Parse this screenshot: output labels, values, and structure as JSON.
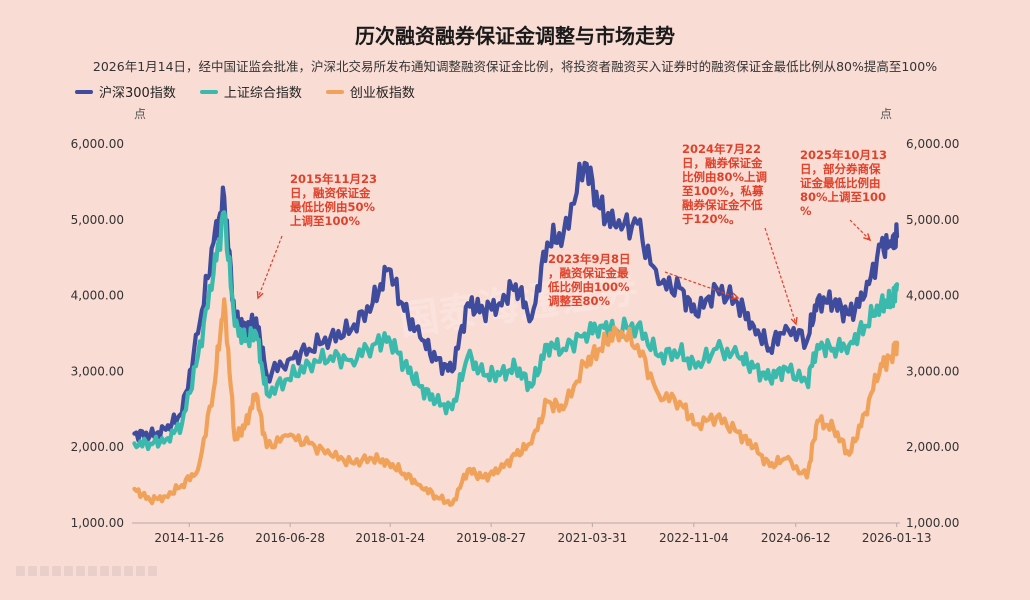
{
  "title": "历次融资融券保证金调整与市场走势",
  "subtitle": "2026年1月14日，经中国证监会批准，沪深北交易所发布通知调整融资保证金比例，将投资者融资买入证券时的融资保证金最低比例从80%提高至100%",
  "watermark": "国泰海通证券",
  "legend": [
    {
      "name": "沪深300指数",
      "color": "#3f4b9c"
    },
    {
      "name": "上证综合指数",
      "color": "#3bb9ad"
    },
    {
      "name": "创业板指数",
      "color": "#f0a25a"
    }
  ],
  "chart_data": {
    "type": "line",
    "title": "历次融资融券保证金调整与市场走势",
    "y_unit_left": "点",
    "y_unit_right": "点",
    "ylim": [
      1000,
      6000
    ],
    "yticks": [
      "1,000.00",
      "2,000.00",
      "3,000.00",
      "4,000.00",
      "5,000.00",
      "6,000.00"
    ],
    "x_tick_labels": [
      "2014-11-26",
      "2016-06-28",
      "2018-01-24",
      "2019-08-27",
      "2021-03-31",
      "2022-11-04",
      "2024-06-12",
      "2026-01-13"
    ],
    "x": [
      "2014-01",
      "2014-04",
      "2014-07",
      "2014-10",
      "2015-01",
      "2015-04",
      "2015-06",
      "2015-08",
      "2015-10",
      "2015-12",
      "2016-02",
      "2016-06",
      "2016-10",
      "2017-02",
      "2017-06",
      "2017-10",
      "2018-01",
      "2018-04",
      "2018-07",
      "2018-10",
      "2019-01",
      "2019-04",
      "2019-07",
      "2019-10",
      "2020-01",
      "2020-04",
      "2020-07",
      "2020-10",
      "2021-02",
      "2021-05",
      "2021-08",
      "2021-12",
      "2022-04",
      "2022-08",
      "2022-11",
      "2023-03",
      "2023-07",
      "2023-10",
      "2024-01",
      "2024-04",
      "2024-08",
      "2024-10",
      "2025-01",
      "2025-04",
      "2025-07",
      "2025-10",
      "2025-12",
      "2026-01"
    ],
    "series": [
      {
        "name": "沪深300指数",
        "color": "#3f4b9c",
        "values": [
          2180,
          2150,
          2230,
          2450,
          3500,
          4700,
          5300,
          3700,
          3550,
          3700,
          2950,
          3150,
          3300,
          3450,
          3550,
          3900,
          4350,
          3800,
          3450,
          3150,
          3000,
          3900,
          3800,
          3900,
          4150,
          3700,
          4700,
          4800,
          5750,
          5150,
          4900,
          4950,
          4150,
          4100,
          3750,
          4100,
          3900,
          3600,
          3300,
          3600,
          3400,
          3950,
          3900,
          3750,
          4000,
          4650,
          4650,
          4780
        ]
      },
      {
        "name": "上证综合指数",
        "color": "#3bb9ad",
        "values": [
          2050,
          2050,
          2100,
          2300,
          3200,
          4300,
          5100,
          3600,
          3400,
          3500,
          2700,
          2900,
          3100,
          3200,
          3150,
          3350,
          3450,
          3100,
          2800,
          2600,
          2500,
          3200,
          2950,
          2950,
          3050,
          2800,
          3350,
          3300,
          3500,
          3600,
          3550,
          3600,
          3200,
          3250,
          3050,
          3300,
          3200,
          3050,
          2900,
          3050,
          2850,
          3350,
          3300,
          3350,
          3600,
          3900,
          3900,
          4150
        ]
      },
      {
        "name": "创业板指数",
        "color": "#f0a25a",
        "values": [
          1450,
          1300,
          1350,
          1500,
          1700,
          2750,
          3950,
          2100,
          2300,
          2700,
          2000,
          2150,
          2050,
          1900,
          1800,
          1850,
          1800,
          1650,
          1500,
          1350,
          1250,
          1700,
          1600,
          1700,
          1900,
          2050,
          2600,
          2500,
          3100,
          3300,
          3550,
          3350,
          2700,
          2600,
          2300,
          2400,
          2200,
          2000,
          1750,
          1850,
          1600,
          2350,
          2250,
          1900,
          2450,
          3100,
          3200,
          3380
        ]
      }
    ],
    "annotations": [
      {
        "text": [
          "2015年11月23",
          "日，融资保证金",
          "最低比例由50%",
          "上调至100%"
        ],
        "x": "2015-11"
      },
      {
        "text": [
          "2023年9月8日",
          "，融资保证金最",
          "低比例由100%",
          "调整至80%"
        ],
        "x": "2023-09"
      },
      {
        "text": [
          "2024年7月22",
          "日，融券保证金",
          "比例由80%上调",
          "至100%，私募",
          "融券保证金不低",
          "于120%。"
        ],
        "x": "2024-07"
      },
      {
        "text": [
          "2025年10月13",
          "日，部分券商保",
          "证金最低比例由",
          "80%上调至100",
          "%"
        ],
        "x": "2025-10"
      }
    ]
  }
}
